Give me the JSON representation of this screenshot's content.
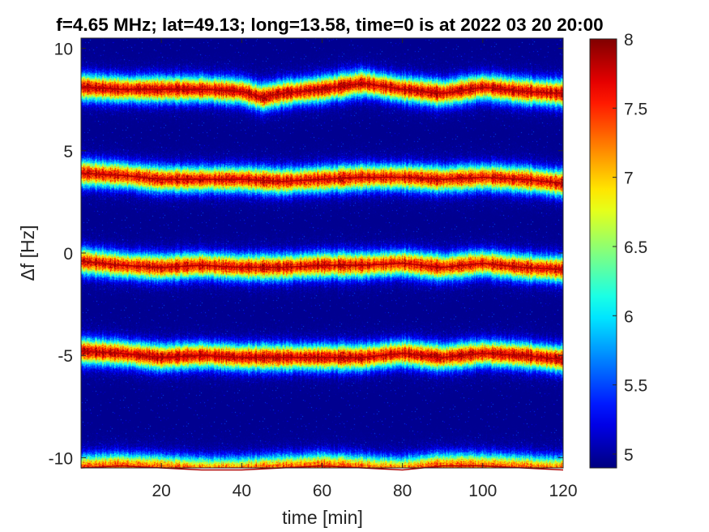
{
  "chart_data": {
    "type": "heatmap",
    "title": "f=4.65 MHz;  lat=49.13; long=13.58, time=0 is at 2022 03 20 20:00",
    "xlabel": "time [min]",
    "ylabel": "Δf [Hz]",
    "xlim": [
      0,
      120
    ],
    "ylim": [
      -10.5,
      10.5
    ],
    "x_ticks": [
      20,
      40,
      60,
      80,
      100,
      120
    ],
    "x_tick_labels": [
      "20",
      "40",
      "60",
      "80",
      "100",
      "120"
    ],
    "y_ticks": [
      10,
      5,
      0,
      -5,
      -10
    ],
    "y_tick_labels": [
      "10",
      "5",
      "0",
      "-5",
      "-10"
    ],
    "colorbar": {
      "colormap": "jet",
      "clim": [
        4.9,
        8.0
      ],
      "ticks": [
        8,
        7.5,
        7,
        6.5,
        6,
        5.5,
        5
      ],
      "tick_labels": [
        "8",
        "7.5",
        "7",
        "6.5",
        "6",
        "5.5",
        "5"
      ]
    },
    "background_value": 4.95,
    "series": [
      {
        "name": "",
        "peak_value": 8.0,
        "x": [
          0,
          10,
          20,
          30,
          40,
          45,
          50,
          60,
          70,
          80,
          90,
          100,
          110,
          120
        ],
        "y": [
          8.1,
          8.0,
          8.0,
          8.0,
          7.9,
          7.6,
          7.8,
          8.0,
          8.3,
          8.0,
          7.8,
          8.1,
          7.9,
          7.8
        ]
      },
      {
        "name": "",
        "peak_value": 7.9,
        "x": [
          0,
          10,
          20,
          30,
          40,
          50,
          60,
          70,
          80,
          90,
          100,
          110,
          120
        ],
        "y": [
          3.9,
          3.8,
          3.6,
          3.6,
          3.6,
          3.5,
          3.6,
          3.7,
          3.7,
          3.6,
          3.7,
          3.6,
          3.4
        ]
      },
      {
        "name": "",
        "peak_value": 7.9,
        "x": [
          0,
          10,
          20,
          30,
          40,
          50,
          60,
          70,
          80,
          90,
          100,
          110,
          120
        ],
        "y": [
          -0.4,
          -0.6,
          -0.7,
          -0.6,
          -0.7,
          -0.7,
          -0.6,
          -0.6,
          -0.5,
          -0.7,
          -0.5,
          -0.7,
          -0.8
        ]
      },
      {
        "name": "",
        "peak_value": 8.0,
        "x": [
          0,
          10,
          20,
          30,
          40,
          50,
          60,
          70,
          80,
          90,
          100,
          110,
          120
        ],
        "y": [
          -4.8,
          -4.9,
          -5.1,
          -5.0,
          -5.1,
          -5.1,
          -5.1,
          -5.1,
          -4.9,
          -5.1,
          -4.9,
          -5.0,
          -5.2
        ]
      },
      {
        "name": "",
        "peak_value": 7.6,
        "x": [
          0,
          10,
          20,
          30,
          40,
          50,
          60,
          70,
          80,
          90,
          100,
          110,
          120
        ],
        "y": [
          -10.5,
          -10.4,
          -10.5,
          -10.6,
          -10.6,
          -10.5,
          -10.4,
          -10.5,
          -10.6,
          -10.4,
          -10.4,
          -10.5,
          -10.6
        ]
      }
    ]
  }
}
